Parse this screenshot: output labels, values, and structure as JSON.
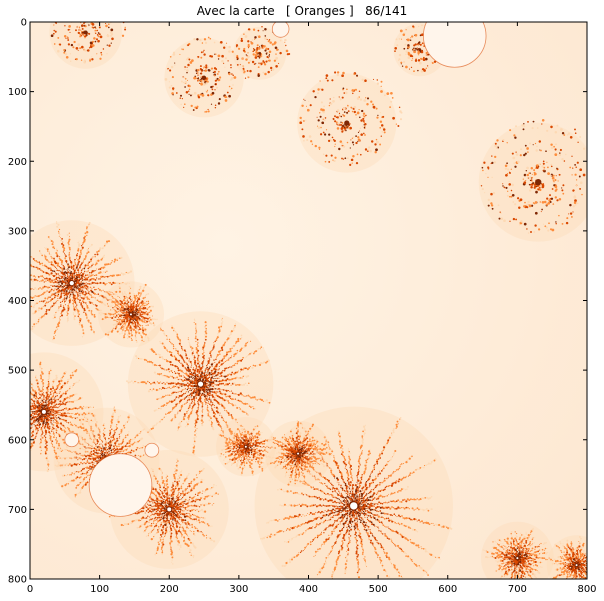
{
  "chart_data": {
    "type": "heatmap",
    "title": "Avec la carte   [ Oranges ]   86/141",
    "colormap": "Oranges",
    "xlim": [
      0,
      800
    ],
    "ylim": [
      800,
      0
    ],
    "xticks": [
      0,
      100,
      200,
      300,
      400,
      500,
      600,
      700,
      800
    ],
    "yticks": [
      0,
      100,
      200,
      300,
      400,
      500,
      600,
      700,
      800
    ],
    "colors": {
      "background": "#fff4e8",
      "light": "#fdd9b4",
      "mid": "#fd8d3c",
      "dark": "#d94801",
      "darkest": "#7f2704",
      "bulb": "#fff5eb"
    },
    "features": [
      {
        "kind": "spiral",
        "x": 80,
        "y": 15,
        "r": 55
      },
      {
        "kind": "spiral",
        "x": 250,
        "y": 80,
        "r": 60
      },
      {
        "kind": "spiral",
        "x": 455,
        "y": 145,
        "r": 75
      },
      {
        "kind": "spiral",
        "x": 730,
        "y": 230,
        "r": 90
      },
      {
        "kind": "spiral",
        "x": 330,
        "y": 45,
        "r": 40
      },
      {
        "kind": "spiral",
        "x": 560,
        "y": 40,
        "r": 40
      },
      {
        "kind": "star",
        "x": 60,
        "y": 375,
        "r": 95
      },
      {
        "kind": "star",
        "x": 245,
        "y": 520,
        "r": 110
      },
      {
        "kind": "star",
        "x": 465,
        "y": 695,
        "r": 150
      },
      {
        "kind": "star",
        "x": 145,
        "y": 420,
        "r": 50
      },
      {
        "kind": "star",
        "x": 310,
        "y": 610,
        "r": 45
      },
      {
        "kind": "star",
        "x": 385,
        "y": 620,
        "r": 50
      },
      {
        "kind": "star",
        "x": 700,
        "y": 770,
        "r": 55
      },
      {
        "kind": "star",
        "x": 785,
        "y": 780,
        "r": 45
      },
      {
        "kind": "star",
        "x": 110,
        "y": 630,
        "r": 80
      },
      {
        "kind": "star",
        "x": 200,
        "y": 700,
        "r": 90
      },
      {
        "kind": "star",
        "x": 20,
        "y": 560,
        "r": 90
      },
      {
        "kind": "bulb",
        "x": 130,
        "y": 665,
        "r": 45
      },
      {
        "kind": "bulb",
        "x": 610,
        "y": 20,
        "r": 45
      },
      {
        "kind": "bulb",
        "x": 60,
        "y": 600,
        "r": 10
      },
      {
        "kind": "bulb",
        "x": 175,
        "y": 615,
        "r": 10
      },
      {
        "kind": "bulb",
        "x": 360,
        "y": 10,
        "r": 12
      }
    ]
  }
}
